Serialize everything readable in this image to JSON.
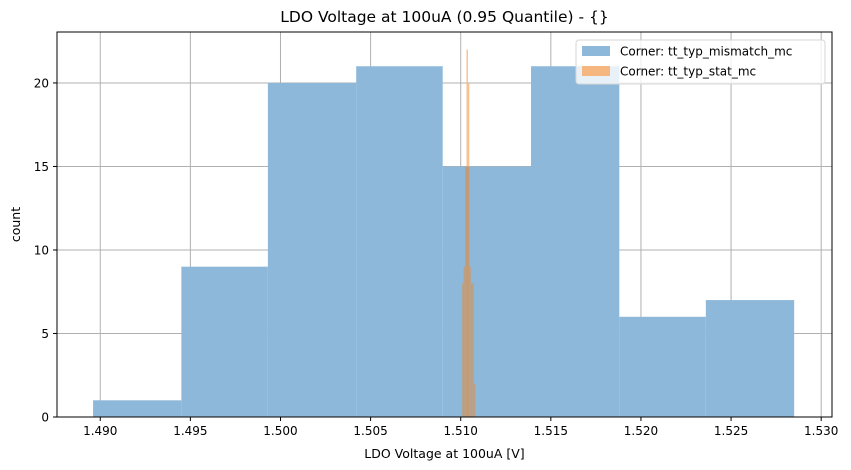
{
  "chart_data": {
    "type": "bar",
    "subtype": "histogram-overlay",
    "title": "LDO Voltage at 100uA (0.95 Quantile) - {}",
    "xlabel": "LDO Voltage at 100uA [V]",
    "ylabel": "count",
    "xlim": [
      1.4876,
      1.5306
    ],
    "ylim": [
      0,
      23.05
    ],
    "xticks": [
      "1.490",
      "1.495",
      "1.500",
      "1.505",
      "1.510",
      "1.515",
      "1.520",
      "1.525",
      "1.530"
    ],
    "xtick_values": [
      1.49,
      1.495,
      1.5,
      1.505,
      1.51,
      1.515,
      1.52,
      1.525,
      1.53
    ],
    "yticks": [
      "0",
      "5",
      "10",
      "15",
      "20"
    ],
    "ytick_values": [
      0,
      5,
      10,
      15,
      20
    ],
    "grid": true,
    "legend_position": "upper right",
    "series": [
      {
        "name": "Corner: tt_typ_mismatch_mc",
        "color": "#8eb8d9",
        "alpha": 0.5,
        "bin_edges": [
          1.4896,
          1.4945,
          1.4993,
          1.5042,
          1.509,
          1.5139,
          1.5188,
          1.5236,
          1.5285
        ],
        "values": [
          1,
          9,
          20,
          21,
          15,
          21,
          6,
          7
        ]
      },
      {
        "name": "Corner: tt_typ_stat_mc",
        "color": "#f5b77f",
        "alpha": 0.5,
        "bin_edges": [
          1.51008,
          1.51016,
          1.51024,
          1.51032,
          1.5104,
          1.51048,
          1.51056,
          1.51064,
          1.51072,
          1.5108
        ],
        "values": [
          8,
          9,
          15,
          22,
          20,
          9,
          8,
          8,
          2
        ]
      }
    ]
  }
}
